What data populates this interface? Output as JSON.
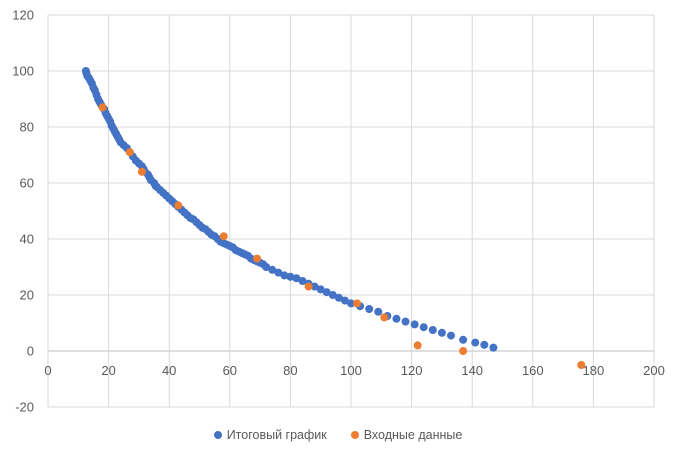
{
  "chart_data": {
    "type": "scatter",
    "xlim": [
      0,
      200
    ],
    "ylim": [
      -20,
      120
    ],
    "x_ticks": [
      0,
      20,
      40,
      60,
      80,
      100,
      120,
      140,
      160,
      180,
      200
    ],
    "y_ticks": [
      -20,
      0,
      20,
      40,
      60,
      80,
      100,
      120
    ],
    "x_tick_labels": [
      "0",
      "20",
      "40",
      "60",
      "80",
      "100",
      "120",
      "140",
      "160",
      "180",
      "200"
    ],
    "y_tick_labels": [
      "-20",
      "0",
      "20",
      "40",
      "60",
      "80",
      "100",
      "120"
    ],
    "grid": true,
    "legend_position": "bottom",
    "series": [
      {
        "name": "Итоговый график",
        "color": "#4472C4",
        "points": [
          [
            12.5,
            100
          ],
          [
            12.7,
            99.2
          ],
          [
            13,
            98.2
          ],
          [
            13.5,
            97.5
          ],
          [
            14,
            96.5
          ],
          [
            14.5,
            95.5
          ],
          [
            15,
            94
          ],
          [
            15.5,
            93
          ],
          [
            16,
            91.5
          ],
          [
            16.5,
            90
          ],
          [
            17,
            89
          ],
          [
            17.5,
            88
          ],
          [
            18.5,
            86.5
          ],
          [
            19,
            85
          ],
          [
            19.5,
            84
          ],
          [
            20,
            83
          ],
          [
            20.5,
            82
          ],
          [
            21,
            80.5
          ],
          [
            21.5,
            79.5
          ],
          [
            22,
            78.5
          ],
          [
            22.5,
            77.5
          ],
          [
            23,
            76.5
          ],
          [
            23.5,
            75.5
          ],
          [
            24,
            74.5
          ],
          [
            25,
            73.5
          ],
          [
            26,
            72.5
          ],
          [
            27,
            71
          ],
          [
            28,
            69.5
          ],
          [
            29,
            68
          ],
          [
            30,
            67
          ],
          [
            31,
            66
          ],
          [
            31.5,
            65
          ],
          [
            32,
            64
          ],
          [
            33,
            63
          ],
          [
            33.5,
            62
          ],
          [
            34,
            61
          ],
          [
            35,
            60
          ],
          [
            35.5,
            59
          ],
          [
            36,
            58.5
          ],
          [
            37,
            57.5
          ],
          [
            38,
            56.5
          ],
          [
            39,
            55.5
          ],
          [
            40,
            54.5
          ],
          [
            41,
            53.5
          ],
          [
            42,
            52.5
          ],
          [
            43,
            51.5
          ],
          [
            44,
            50.5
          ],
          [
            45,
            49.5
          ],
          [
            46,
            48.5
          ],
          [
            47,
            47.5
          ],
          [
            48,
            47
          ],
          [
            49,
            46
          ],
          [
            50,
            45
          ],
          [
            51,
            44
          ],
          [
            52,
            43.5
          ],
          [
            53,
            42.5
          ],
          [
            54,
            41.5
          ],
          [
            55,
            41
          ],
          [
            56,
            40
          ],
          [
            57,
            39
          ],
          [
            58,
            38.5
          ],
          [
            59,
            38
          ],
          [
            60,
            37.5
          ],
          [
            61,
            37
          ],
          [
            62,
            36
          ],
          [
            63,
            35.5
          ],
          [
            64,
            35
          ],
          [
            65,
            34.5
          ],
          [
            66,
            34
          ],
          [
            67,
            33
          ],
          [
            68,
            32.5
          ],
          [
            69,
            32
          ],
          [
            70,
            31.5
          ],
          [
            71,
            31
          ],
          [
            72,
            30
          ],
          [
            74,
            29
          ],
          [
            76,
            28
          ],
          [
            78,
            27
          ],
          [
            80,
            26.5
          ],
          [
            82,
            26
          ],
          [
            84,
            25
          ],
          [
            86,
            24
          ],
          [
            88,
            23
          ],
          [
            90,
            22
          ],
          [
            92,
            21
          ],
          [
            94,
            20
          ],
          [
            96,
            19
          ],
          [
            98,
            18
          ],
          [
            100,
            17
          ],
          [
            103,
            16
          ],
          [
            106,
            15
          ],
          [
            109,
            14
          ],
          [
            112,
            12.5
          ],
          [
            115,
            11.5
          ],
          [
            118,
            10.5
          ],
          [
            121,
            9.5
          ],
          [
            124,
            8.5
          ],
          [
            127,
            7.5
          ],
          [
            130,
            6.5
          ],
          [
            133,
            5.5
          ],
          [
            137,
            4
          ],
          [
            141,
            3
          ],
          [
            144,
            2.2
          ],
          [
            147,
            1.2
          ]
        ]
      },
      {
        "name": "Входные данные",
        "color": "#ED7D31",
        "points": [
          [
            18,
            87
          ],
          [
            27,
            71
          ],
          [
            31,
            64
          ],
          [
            43,
            52
          ],
          [
            58,
            41
          ],
          [
            69,
            33
          ],
          [
            86,
            23
          ],
          [
            102,
            17
          ],
          [
            111,
            12
          ],
          [
            122,
            2
          ],
          [
            137,
            0
          ],
          [
            176,
            -5
          ]
        ]
      }
    ]
  }
}
